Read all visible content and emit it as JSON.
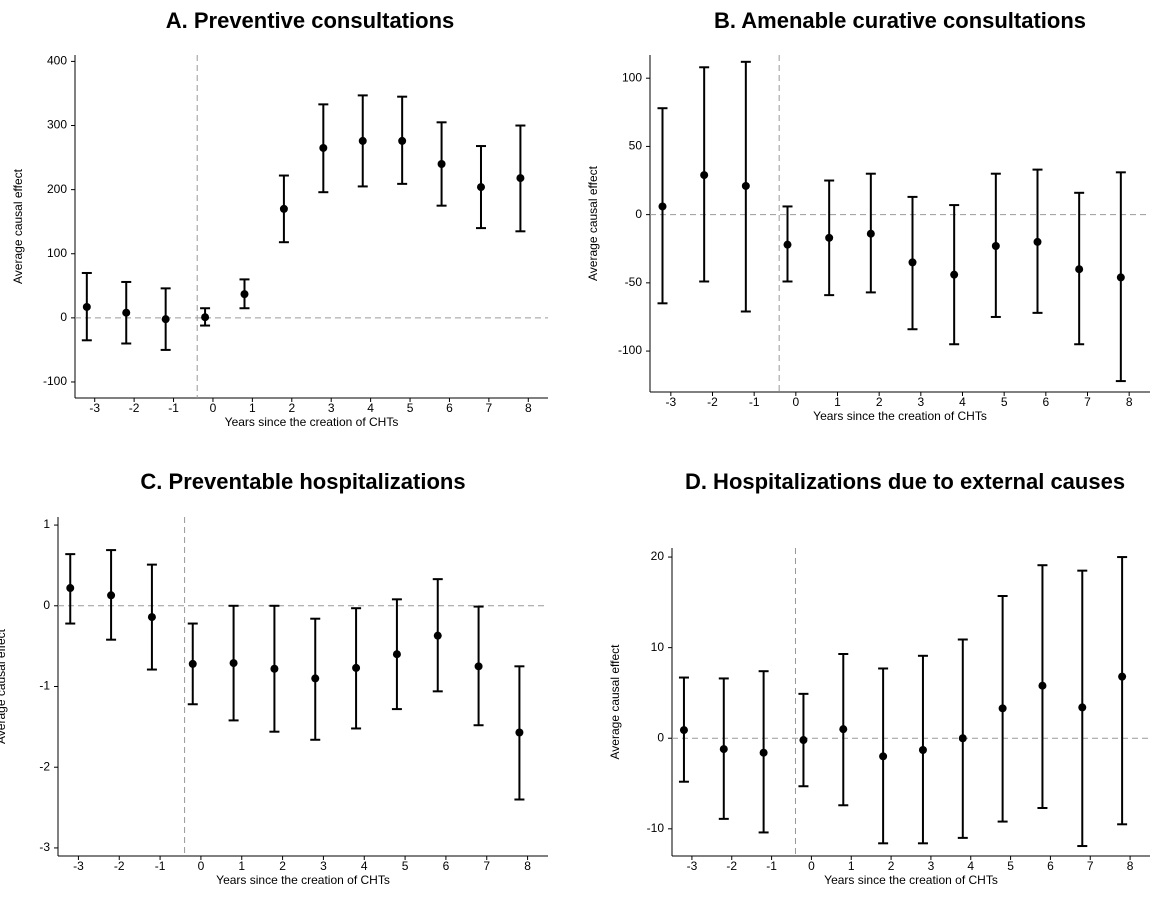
{
  "chart_data": [
    {
      "type": "errorbar",
      "title": "A. Preventive consultations",
      "xlabel": "Years since the creation of CHTs",
      "ylabel": "Average causal effect",
      "x": [
        -3.2,
        -2.2,
        -1.2,
        -0.2,
        0.8,
        1.8,
        2.8,
        3.8,
        4.8,
        5.8,
        6.8,
        7.8
      ],
      "values": [
        17,
        8,
        -2,
        1,
        37,
        170,
        265,
        276,
        276,
        240,
        204,
        218
      ],
      "lower": [
        -35,
        -40,
        -50,
        -12,
        15,
        118,
        196,
        205,
        209,
        175,
        140,
        135
      ],
      "upper": [
        70,
        56,
        46,
        15,
        60,
        222,
        333,
        347,
        345,
        305,
        268,
        300
      ],
      "color": "#000000",
      "xlim": [
        -3.5,
        8.5
      ],
      "xticks": [
        -3,
        -2,
        -1,
        0,
        1,
        2,
        3,
        4,
        5,
        6,
        7,
        8
      ],
      "ylim": [
        -125,
        410
      ],
      "yticks": [
        -100,
        0,
        100,
        200,
        300,
        400
      ],
      "vline": -0.4,
      "hline": 0
    },
    {
      "type": "errorbar",
      "title": "B. Amenable curative consultations",
      "xlabel": "Years since the creation of CHTs",
      "ylabel": "Average causal effect",
      "x": [
        -3.2,
        -2.2,
        -1.2,
        -0.2,
        0.8,
        1.8,
        2.8,
        3.8,
        4.8,
        5.8,
        6.8,
        7.8
      ],
      "values": [
        6,
        29,
        21,
        -22,
        -17,
        -14,
        -35,
        -44,
        -23,
        -20,
        -40,
        -46
      ],
      "lower": [
        -65,
        -49,
        -71,
        -49,
        -59,
        -57,
        -84,
        -95,
        -75,
        -72,
        -95,
        -122
      ],
      "upper": [
        78,
        108,
        112,
        6,
        25,
        30,
        13,
        7,
        30,
        33,
        16,
        31
      ],
      "color": "#000000",
      "xlim": [
        -3.5,
        8.5
      ],
      "xticks": [
        -3,
        -2,
        -1,
        0,
        1,
        2,
        3,
        4,
        5,
        6,
        7,
        8
      ],
      "ylim": [
        -130,
        117
      ],
      "yticks": [
        -100,
        -50,
        0,
        50,
        100
      ],
      "vline": -0.4,
      "hline": 0
    },
    {
      "type": "errorbar",
      "title": "C. Preventable hospitalizations",
      "xlabel": "Years since the creation of CHTs",
      "ylabel": "Average causal effect",
      "x": [
        -3.2,
        -2.2,
        -1.2,
        -0.2,
        0.8,
        1.8,
        2.8,
        3.8,
        4.8,
        5.8,
        6.8,
        7.8
      ],
      "values": [
        0.22,
        0.13,
        -0.14,
        -0.72,
        -0.71,
        -0.78,
        -0.9,
        -0.77,
        -0.6,
        -0.37,
        -0.75,
        -1.57
      ],
      "lower": [
        -0.22,
        -0.42,
        -0.79,
        -1.22,
        -1.42,
        -1.56,
        -1.66,
        -1.52,
        -1.28,
        -1.06,
        -1.48,
        -2.4
      ],
      "upper": [
        0.64,
        0.69,
        0.51,
        -0.22,
        0.0,
        0.0,
        -0.16,
        -0.03,
        0.08,
        0.33,
        -0.01,
        -0.75
      ],
      "color": "#000000",
      "xlim": [
        -3.5,
        8.5
      ],
      "xticks": [
        -3,
        -2,
        -1,
        0,
        1,
        2,
        3,
        4,
        5,
        6,
        7,
        8
      ],
      "ylim": [
        -3.1,
        1.1
      ],
      "yticks": [
        -3,
        -2,
        -1,
        0,
        1
      ],
      "vline": -0.4,
      "hline": 0
    },
    {
      "type": "errorbar",
      "title": "D. Hospitalizations due to external causes",
      "xlabel": "Years since the creation of CHTs",
      "ylabel": "Average causal effect",
      "x": [
        -3.2,
        -2.2,
        -1.2,
        -0.2,
        0.8,
        1.8,
        2.8,
        3.8,
        4.8,
        5.8,
        6.8,
        7.8
      ],
      "values": [
        0.9,
        -1.2,
        -1.6,
        -0.2,
        1.0,
        -2.0,
        -1.3,
        0,
        3.3,
        5.8,
        3.4,
        6.8
      ],
      "lower": [
        -4.8,
        -8.9,
        -10.4,
        -5.3,
        -7.4,
        -11.6,
        -11.6,
        -11.0,
        -9.2,
        -7.7,
        -11.9,
        -9.5
      ],
      "upper": [
        6.7,
        6.6,
        7.4,
        4.9,
        9.3,
        7.7,
        9.1,
        10.9,
        15.7,
        19.1,
        18.5,
        20
      ],
      "color": "#000000",
      "xlim": [
        -3.5,
        8.5
      ],
      "xticks": [
        -3,
        -2,
        -1,
        0,
        1,
        2,
        3,
        4,
        5,
        6,
        7,
        8
      ],
      "ylim": [
        -13,
        21
      ],
      "yticks": [
        -10,
        0,
        10,
        20
      ],
      "vline": -0.4,
      "hline": 0
    }
  ]
}
